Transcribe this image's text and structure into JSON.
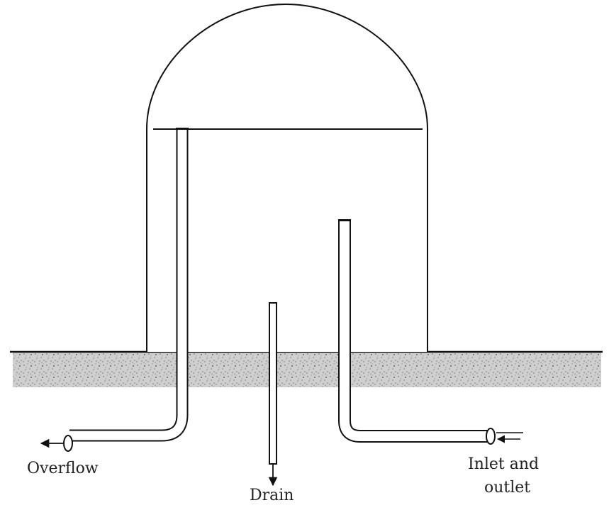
{
  "diagram": {
    "labels": {
      "overflow": "Overflow",
      "drain": "Drain",
      "inlet_line1": "Inlet and",
      "inlet_line2": "outlet"
    },
    "colors": {
      "line": "#111111",
      "ground": "#c9c9c9",
      "background": "#ffffff"
    }
  }
}
